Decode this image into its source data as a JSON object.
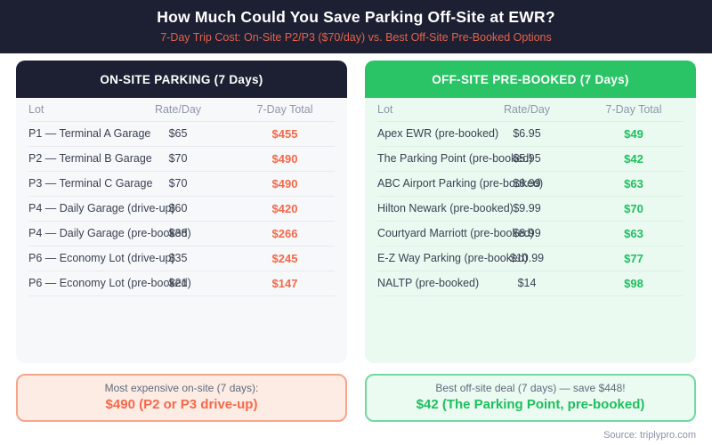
{
  "page": {
    "title": "How Much Could You Save Parking Off-Site at EWR?",
    "subtitle": "7-Day Trip Cost: On-Site P2/P3 ($70/day) vs. Best Off-Site Pre-Booked Options",
    "source": "Source: triplypro.com"
  },
  "colors": {
    "banner_bg": "#1c2032",
    "subtitle_text": "#e4624d",
    "onsite_header_bg": "#1c2032",
    "offsite_header_bg": "#2ac466",
    "onsite_panel_bg": "#f7f8fa",
    "offsite_panel_bg": "#eafaf1",
    "onsite_total_text": "#f4694a",
    "offsite_total_text": "#1dbf5e"
  },
  "onsite": {
    "header": "ON-SITE PARKING (7 Days)",
    "columns": [
      "Lot",
      "Rate/Day",
      "7-Day Total"
    ],
    "rows": [
      {
        "lot": "P1 — Terminal A Garage",
        "rate": "$65",
        "total": "$455"
      },
      {
        "lot": "P2 — Terminal B Garage",
        "rate": "$70",
        "total": "$490"
      },
      {
        "lot": "P3 — Terminal C Garage",
        "rate": "$70",
        "total": "$490"
      },
      {
        "lot": "P4 — Daily Garage (drive-up)",
        "rate": "$60",
        "total": "$420"
      },
      {
        "lot": "P4 — Daily Garage (pre-booked)",
        "rate": "$38",
        "total": "$266"
      },
      {
        "lot": "P6 — Economy Lot (drive-up)",
        "rate": "$35",
        "total": "$245"
      },
      {
        "lot": "P6 — Economy Lot (pre-booked)",
        "rate": "$21",
        "total": "$147"
      }
    ],
    "callout": {
      "line1": "Most expensive on-site (7 days):",
      "line2": "$490 (P2 or P3 drive-up)"
    }
  },
  "offsite": {
    "header": "OFF-SITE PRE-BOOKED (7 Days)",
    "columns": [
      "Lot",
      "Rate/Day",
      "7-Day Total"
    ],
    "rows": [
      {
        "lot": "Apex EWR (pre-booked)",
        "rate": "$6.95",
        "total": "$49"
      },
      {
        "lot": "The Parking Point (pre-booked)",
        "rate": "$5.95",
        "total": "$42"
      },
      {
        "lot": "ABC Airport Parking (pre-booked)",
        "rate": "$8.99",
        "total": "$63"
      },
      {
        "lot": "Hilton Newark (pre-booked)",
        "rate": "$9.99",
        "total": "$70"
      },
      {
        "lot": "Courtyard Marriott (pre-booked)",
        "rate": "$8.99",
        "total": "$63"
      },
      {
        "lot": "E-Z Way Parking (pre-booked)",
        "rate": "$10.99",
        "total": "$77"
      },
      {
        "lot": "NALTP (pre-booked)",
        "rate": "$14",
        "total": "$98"
      }
    ],
    "callout": {
      "line1": "Best off-site deal (7 days) — save $448!",
      "line2": "$42 (The Parking Point, pre-booked)"
    }
  },
  "chart_data": [
    {
      "type": "table",
      "title": "ON-SITE PARKING (7 Days)",
      "columns": [
        "Lot",
        "Rate/Day ($)",
        "7-Day Total ($)"
      ],
      "rows": [
        [
          "P1 — Terminal A Garage",
          65,
          455
        ],
        [
          "P2 — Terminal B Garage",
          70,
          490
        ],
        [
          "P3 — Terminal C Garage",
          70,
          490
        ],
        [
          "P4 — Daily Garage (drive-up)",
          60,
          420
        ],
        [
          "P4 — Daily Garage (pre-booked)",
          38,
          266
        ],
        [
          "P6 — Economy Lot (drive-up)",
          35,
          245
        ],
        [
          "P6 — Economy Lot (pre-booked)",
          21,
          147
        ]
      ],
      "annotation": "Most expensive on-site (7 days): $490 (P2 or P3 drive-up)"
    },
    {
      "type": "table",
      "title": "OFF-SITE PRE-BOOKED (7 Days)",
      "columns": [
        "Lot",
        "Rate/Day ($)",
        "7-Day Total ($)"
      ],
      "rows": [
        [
          "Apex EWR (pre-booked)",
          6.95,
          49
        ],
        [
          "The Parking Point (pre-booked)",
          5.95,
          42
        ],
        [
          "ABC Airport Parking (pre-booked)",
          8.99,
          63
        ],
        [
          "Hilton Newark (pre-booked)",
          9.99,
          70
        ],
        [
          "Courtyard Marriott (pre-booked)",
          8.99,
          63
        ],
        [
          "E-Z Way Parking (pre-booked)",
          10.99,
          77
        ],
        [
          "NALTP (pre-booked)",
          14,
          98
        ]
      ],
      "annotation": "Best off-site deal (7 days) — save $448! $42 (The Parking Point, pre-booked)"
    }
  ]
}
